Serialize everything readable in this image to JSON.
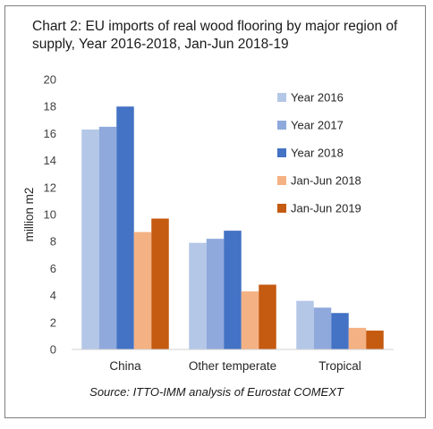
{
  "chart_data": {
    "type": "bar",
    "title": "Chart 2: EU imports of real wood flooring by major region of supply, Year 2016-2018, Jan-Jun 2018-19",
    "xlabel": "",
    "ylabel": "million m2",
    "ylim": [
      0,
      20
    ],
    "yticks": [
      "0",
      "2",
      "4",
      "6",
      "8",
      "10",
      "12",
      "14",
      "16",
      "18",
      "20"
    ],
    "grid": false,
    "legend_position": "right",
    "categories": [
      "China",
      "Other temperate",
      "Tropical"
    ],
    "series": [
      {
        "name": "Year 2016",
        "color": "#b4c7e7",
        "values": [
          16.3,
          7.9,
          3.6
        ]
      },
      {
        "name": "Year 2017",
        "color": "#8fa9dc",
        "values": [
          16.5,
          8.2,
          3.1
        ]
      },
      {
        "name": "Year 2018",
        "color": "#4472c4",
        "values": [
          18.0,
          8.8,
          2.7
        ]
      },
      {
        "name": "Jan-Jun 2018",
        "color": "#f4b183",
        "values": [
          8.7,
          4.3,
          1.6
        ]
      },
      {
        "name": "Jan-Jun 2019",
        "color": "#c55a11",
        "values": [
          9.7,
          4.8,
          1.4
        ]
      }
    ],
    "source": "Source: ITTO-IMM analysis of Eurostat COMEXT"
  }
}
